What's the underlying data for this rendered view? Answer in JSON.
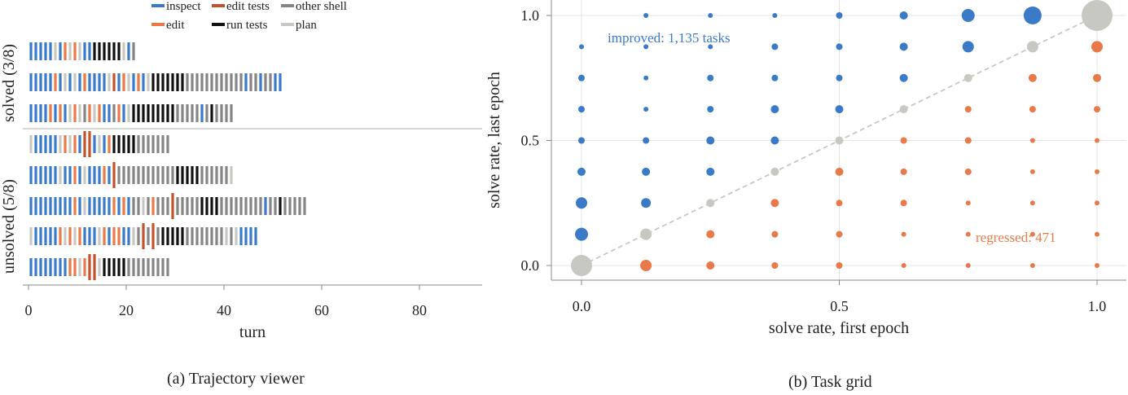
{
  "panel_a": {
    "caption": "(a) Trajectory viewer",
    "legend": [
      {
        "label": "inspect",
        "color": "#3a7ac6"
      },
      {
        "label": "edit tests",
        "color": "#c0532b"
      },
      {
        "label": "other shell",
        "color": "#858585"
      },
      {
        "label": "edit",
        "color": "#e87a4a"
      },
      {
        "label": "run tests",
        "color": "#111111"
      },
      {
        "label": "plan",
        "color": "#c8c8c2"
      }
    ],
    "group_labels": [
      "solved (3/8)",
      "unsolved (5/8)"
    ]
  },
  "panel_b": {
    "caption": "(b) Task grid",
    "annotation_improved": "improved: 1,135 tasks",
    "annotation_regressed": "regressed: 471"
  },
  "chart_data": [
    {
      "type": "event-strip",
      "xlabel": "turn",
      "x_ticks": [
        0,
        20,
        40,
        60,
        80
      ],
      "xlim": [
        -1,
        93
      ],
      "categories": [
        "inspect",
        "edit",
        "edit tests",
        "run tests",
        "other shell",
        "plan"
      ],
      "colors": {
        "inspect": "#3a7ac6",
        "edit": "#e87a4a",
        "edit tests": "#c0532b",
        "run tests": "#111111",
        "other shell": "#858585",
        "plan": "#c8c8c2"
      },
      "rows": [
        {
          "group": "solved",
          "events": [
            "inspect",
            "inspect",
            "inspect",
            "inspect",
            "inspect",
            "plan",
            "inspect",
            "edit",
            "plan",
            "edit",
            "plan",
            "inspect",
            "inspect",
            "run tests",
            "run tests",
            "run tests",
            "run tests",
            "run tests",
            "run tests",
            "plan",
            "inspect",
            "other shell"
          ]
        },
        {
          "group": "solved",
          "events": [
            "inspect",
            "inspect",
            "inspect",
            "inspect",
            "inspect",
            "edit",
            "inspect",
            "plan",
            "inspect",
            "plan",
            "inspect",
            "edit",
            "inspect",
            "inspect",
            "inspect",
            "inspect",
            "plan",
            "edit tests",
            "inspect",
            "edit",
            "plan",
            "inspect",
            "edit",
            "inspect",
            "plan",
            "run tests",
            "run tests",
            "run tests",
            "run tests",
            "run tests",
            "run tests",
            "run tests",
            "other shell",
            "other shell",
            "other shell",
            "other shell",
            "other shell",
            "other shell",
            "other shell",
            "other shell",
            "other shell",
            "other shell",
            "other shell",
            "other shell",
            "inspect",
            "other shell",
            "other shell",
            "inspect",
            "other shell",
            "other shell",
            "inspect",
            "inspect"
          ]
        },
        {
          "group": "solved",
          "events": [
            "inspect",
            "inspect",
            "inspect",
            "inspect",
            "edit",
            "inspect",
            "edit",
            "inspect",
            "plan",
            "edit",
            "plan",
            "other shell",
            "edit",
            "plan",
            "edit",
            "inspect",
            "inspect",
            "other shell",
            "edit",
            "inspect",
            "plan",
            "run tests",
            "run tests",
            "run tests",
            "run tests",
            "run tests",
            "run tests",
            "run tests",
            "run tests",
            "run tests",
            "other shell",
            "other shell",
            "other shell",
            "other shell",
            "other shell",
            "inspect",
            "other shell",
            "run tests",
            "other shell",
            "other shell",
            "other shell",
            "other shell"
          ]
        },
        {
          "group": "unsolved",
          "events": [
            "plan",
            "inspect",
            "inspect",
            "inspect",
            "inspect",
            "inspect",
            "plan",
            "edit",
            "plan",
            "edit",
            "inspect",
            "edit tests",
            "edit tests",
            "inspect",
            "plan",
            "inspect",
            "edit",
            "run tests",
            "run tests",
            "run tests",
            "run tests",
            "run tests",
            "other shell",
            "other shell",
            "other shell",
            "other shell",
            "other shell",
            "other shell",
            "other shell"
          ]
        },
        {
          "group": "unsolved",
          "events": [
            "inspect",
            "inspect",
            "inspect",
            "inspect",
            "inspect",
            "inspect",
            "plan",
            "inspect",
            "inspect",
            "edit",
            "inspect",
            "plan",
            "inspect",
            "inspect",
            "inspect",
            "edit",
            "inspect",
            "edit tests",
            "other shell",
            "other shell",
            "other shell",
            "other shell",
            "other shell",
            "other shell",
            "other shell",
            "other shell",
            "other shell",
            "other shell",
            "other shell",
            "other shell",
            "run tests",
            "run tests",
            "run tests",
            "run tests",
            "run tests",
            "other shell",
            "other shell",
            "other shell",
            "other shell",
            "other shell",
            "other shell",
            "plan"
          ]
        },
        {
          "group": "unsolved",
          "events": [
            "inspect",
            "inspect",
            "inspect",
            "inspect",
            "inspect",
            "inspect",
            "inspect",
            "inspect",
            "inspect",
            "edit",
            "inspect",
            "plan",
            "inspect",
            "inspect",
            "inspect",
            "inspect",
            "inspect",
            "edit",
            "inspect",
            "edit",
            "inspect",
            "other shell",
            "other shell",
            "plan",
            "other shell",
            "edit",
            "other shell",
            "other shell",
            "other shell",
            "edit tests",
            "other shell",
            "other shell",
            "other shell",
            "other shell",
            "other shell",
            "run tests",
            "run tests",
            "run tests",
            "run tests",
            "other shell",
            "other shell",
            "other shell",
            "other shell",
            "other shell",
            "other shell",
            "other shell",
            "other shell",
            "other shell",
            "inspect",
            "other shell",
            "other shell",
            "run tests",
            "other shell",
            "other shell",
            "other shell",
            "other shell",
            "other shell"
          ]
        },
        {
          "group": "unsolved",
          "events": [
            "plan",
            "inspect",
            "inspect",
            "inspect",
            "inspect",
            "inspect",
            "edit",
            "plan",
            "edit",
            "plan",
            "edit",
            "inspect",
            "inspect",
            "inspect",
            "plan",
            "edit",
            "inspect",
            "edit",
            "edit",
            "inspect",
            "inspect",
            "plan",
            "other shell",
            "edit tests",
            "other shell",
            "edit tests",
            "other shell",
            "run tests",
            "run tests",
            "run tests",
            "run tests",
            "run tests",
            "other shell",
            "other shell",
            "other shell",
            "other shell",
            "other shell",
            "other shell",
            "other shell",
            "other shell",
            "plan",
            "other shell",
            "plan",
            "inspect",
            "inspect",
            "inspect",
            "inspect"
          ]
        },
        {
          "group": "unsolved",
          "events": [
            "inspect",
            "inspect",
            "inspect",
            "inspect",
            "inspect",
            "inspect",
            "inspect",
            "inspect",
            "edit",
            "edit",
            "plan",
            "edit",
            "edit tests",
            "edit tests",
            "plan",
            "run tests",
            "run tests",
            "run tests",
            "run tests",
            "run tests",
            "other shell",
            "other shell",
            "other shell",
            "other shell",
            "other shell",
            "other shell",
            "other shell",
            "other shell",
            "other shell"
          ]
        }
      ],
      "highlighted_events": [
        [
          3,
          11
        ],
        [
          3,
          12
        ],
        [
          4,
          17
        ],
        [
          5,
          29
        ],
        [
          6,
          23
        ],
        [
          6,
          25
        ],
        [
          7,
          12
        ],
        [
          7,
          13
        ]
      ]
    },
    {
      "type": "scatter",
      "xlabel": "solve rate, first epoch",
      "ylabel": "solve rate, last epoch",
      "xlim": [
        -0.06,
        1.06
      ],
      "ylim": [
        -0.06,
        1.06
      ],
      "x_ticks": [
        "0.0",
        "0.5",
        "1.0"
      ],
      "y_ticks": [
        "0.0",
        "0.5",
        "1.0"
      ],
      "grid": true,
      "diagonal": true,
      "grid_values": [
        0,
        0.125,
        0.25,
        0.375,
        0.5,
        0.625,
        0.75,
        0.875,
        1.0
      ],
      "series": [
        {
          "color": "#3a7ac6",
          "points": [
            [
              0,
              0.125,
              8
            ],
            [
              0,
              0.25,
              7
            ],
            [
              0,
              0.375,
              5
            ],
            [
              0,
              0.5,
              4
            ],
            [
              0,
              0.625,
              4
            ],
            [
              0,
              0.75,
              4
            ],
            [
              0,
              0.875,
              3
            ],
            [
              0.125,
              0.25,
              6
            ],
            [
              0.125,
              0.375,
              5
            ],
            [
              0.125,
              0.5,
              4
            ],
            [
              0.125,
              0.625,
              3
            ],
            [
              0.125,
              0.75,
              3
            ],
            [
              0.125,
              0.875,
              3
            ],
            [
              0.125,
              1.0,
              3
            ],
            [
              0.25,
              0.375,
              5
            ],
            [
              0.25,
              0.5,
              5
            ],
            [
              0.25,
              0.625,
              4
            ],
            [
              0.25,
              0.75,
              4
            ],
            [
              0.25,
              0.875,
              3
            ],
            [
              0.25,
              1.0,
              3
            ],
            [
              0.375,
              0.5,
              5
            ],
            [
              0.375,
              0.625,
              5
            ],
            [
              0.375,
              0.75,
              4
            ],
            [
              0.375,
              0.875,
              4
            ],
            [
              0.375,
              1.0,
              3
            ],
            [
              0.5,
              0.625,
              5
            ],
            [
              0.5,
              0.75,
              4
            ],
            [
              0.5,
              0.875,
              4
            ],
            [
              0.5,
              1.0,
              4
            ],
            [
              0.625,
              0.75,
              5
            ],
            [
              0.625,
              0.875,
              5
            ],
            [
              0.625,
              1.0,
              5
            ],
            [
              0.75,
              0.875,
              7
            ],
            [
              0.75,
              1.0,
              8
            ],
            [
              0.875,
              1.0,
              11
            ]
          ]
        },
        {
          "color": "#e87a4a",
          "points": [
            [
              0.125,
              0,
              7
            ],
            [
              0.25,
              0,
              5
            ],
            [
              0.25,
              0.125,
              5
            ],
            [
              0.375,
              0,
              4
            ],
            [
              0.375,
              0.125,
              4
            ],
            [
              0.375,
              0.25,
              5
            ],
            [
              0.5,
              0,
              4
            ],
            [
              0.5,
              0.125,
              4
            ],
            [
              0.5,
              0.25,
              4
            ],
            [
              0.5,
              0.375,
              5
            ],
            [
              0.625,
              0,
              3
            ],
            [
              0.625,
              0.125,
              3
            ],
            [
              0.625,
              0.25,
              4
            ],
            [
              0.625,
              0.375,
              4
            ],
            [
              0.625,
              0.5,
              4
            ],
            [
              0.75,
              0,
              3
            ],
            [
              0.75,
              0.125,
              3
            ],
            [
              0.75,
              0.25,
              3
            ],
            [
              0.75,
              0.375,
              4
            ],
            [
              0.75,
              0.5,
              4
            ],
            [
              0.75,
              0.625,
              4
            ],
            [
              0.875,
              0,
              3
            ],
            [
              0.875,
              0.125,
              3
            ],
            [
              0.875,
              0.25,
              3
            ],
            [
              0.875,
              0.375,
              3
            ],
            [
              0.875,
              0.5,
              3
            ],
            [
              0.875,
              0.625,
              4
            ],
            [
              0.875,
              0.75,
              5
            ],
            [
              1.0,
              0,
              3
            ],
            [
              1.0,
              0.125,
              3
            ],
            [
              1.0,
              0.25,
              3
            ],
            [
              1.0,
              0.375,
              3
            ],
            [
              1.0,
              0.5,
              3
            ],
            [
              1.0,
              0.625,
              4
            ],
            [
              1.0,
              0.75,
              5
            ],
            [
              1.0,
              0.875,
              7
            ]
          ]
        },
        {
          "color": "#c8c8c2",
          "points": [
            [
              0,
              0,
              13
            ],
            [
              0.125,
              0.125,
              7
            ],
            [
              0.25,
              0.25,
              5
            ],
            [
              0.375,
              0.375,
              5
            ],
            [
              0.5,
              0.5,
              5
            ],
            [
              0.625,
              0.625,
              5
            ],
            [
              0.75,
              0.75,
              5
            ],
            [
              0.875,
              0.875,
              7
            ],
            [
              1.0,
              1.0,
              19
            ]
          ]
        }
      ]
    }
  ]
}
